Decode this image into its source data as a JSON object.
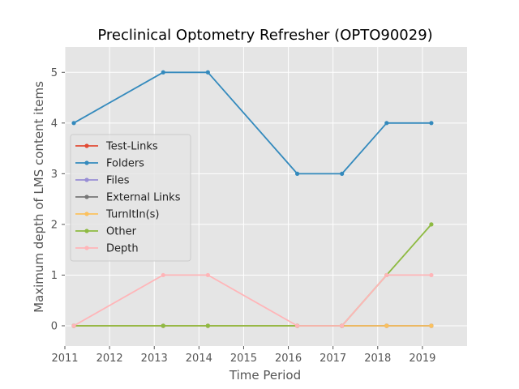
{
  "chart_data": {
    "type": "line",
    "title": "Preclinical Optometry Refresher (OPTO90029)",
    "xlabel": "Time Period",
    "ylabel": "Maximum depth of LMS content items",
    "xlim": [
      2011,
      2020
    ],
    "ylim": [
      -0.4,
      5.5
    ],
    "xticks": [
      "2011",
      "2012",
      "2013",
      "2014",
      "2015",
      "2016",
      "2017",
      "2018",
      "2019"
    ],
    "yticks": [
      "0",
      "1",
      "2",
      "3",
      "4",
      "5"
    ],
    "grid": true,
    "legend_position": "center-left",
    "x": [
      2011.2,
      2013.2,
      2014.2,
      2016.2,
      2017.2,
      2018.2,
      2019.2
    ],
    "series": [
      {
        "name": "Test-Links",
        "color": "#E24A33",
        "values": [
          0,
          0,
          0,
          0,
          0,
          0,
          0
        ]
      },
      {
        "name": "Folders",
        "color": "#348ABD",
        "values": [
          4,
          5,
          5,
          3,
          3,
          4,
          4
        ]
      },
      {
        "name": "Files",
        "color": "#988ED5",
        "values": [
          0,
          0,
          0,
          0,
          0,
          0,
          0
        ]
      },
      {
        "name": "External Links",
        "color": "#777777",
        "values": [
          0,
          0,
          0,
          0,
          0,
          0,
          0
        ]
      },
      {
        "name": "TurnItIn(s)",
        "color": "#FBC15E",
        "values": [
          0,
          0,
          0,
          0,
          0,
          0,
          0
        ]
      },
      {
        "name": "Other",
        "color": "#8EBA42",
        "values": [
          0,
          0,
          0,
          0,
          0,
          1,
          2
        ]
      },
      {
        "name": "Depth",
        "color": "#FFB5B8",
        "values": [
          0,
          1,
          1,
          0,
          0,
          1,
          1
        ]
      }
    ]
  }
}
